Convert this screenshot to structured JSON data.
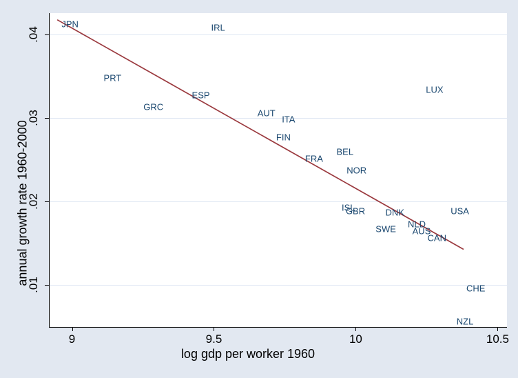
{
  "figure": {
    "background_color": "#e2e8f1",
    "plot_background_color": "#ffffff",
    "grid_color": "#dfe7f3",
    "axis_color": "#000000",
    "marker_label_color": "#1a476f",
    "fit_line_color": "#9b3a3f"
  },
  "chart_data": {
    "type": "scatter",
    "title": "",
    "xlabel": "log gdp per worker 1960",
    "ylabel": "annual growth rate 1960-2000",
    "xlim": [
      8.921,
      10.533
    ],
    "ylim": [
      0.005,
      0.0426
    ],
    "grid": "horizontal-only",
    "legend_position": "none",
    "marker_style": "country-code-text-labels",
    "x_ticks": [
      {
        "value": 9,
        "label": "9"
      },
      {
        "value": 9.5,
        "label": "9.5"
      },
      {
        "value": 10,
        "label": "10"
      },
      {
        "value": 10.5,
        "label": "10.5"
      }
    ],
    "y_ticks": [
      {
        "value": 0.01,
        "label": ".01"
      },
      {
        "value": 0.02,
        "label": ".02"
      },
      {
        "value": 0.03,
        "label": ".03"
      },
      {
        "value": 0.04,
        "label": ".04"
      }
    ],
    "points": [
      {
        "label": "JPN",
        "x": 8.993,
        "y": 0.0413
      },
      {
        "label": "IRL",
        "x": 9.515,
        "y": 0.0409
      },
      {
        "label": "PRT",
        "x": 9.143,
        "y": 0.0348
      },
      {
        "label": "ESP",
        "x": 9.454,
        "y": 0.0328
      },
      {
        "label": "GRC",
        "x": 9.287,
        "y": 0.0314
      },
      {
        "label": "LUX",
        "x": 10.278,
        "y": 0.0334
      },
      {
        "label": "AUT",
        "x": 9.685,
        "y": 0.0306
      },
      {
        "label": "ITA",
        "x": 9.763,
        "y": 0.0299
      },
      {
        "label": "FIN",
        "x": 9.745,
        "y": 0.0277
      },
      {
        "label": "BEL",
        "x": 9.962,
        "y": 0.026
      },
      {
        "label": "FRA",
        "x": 9.853,
        "y": 0.0252
      },
      {
        "label": "NOR",
        "x": 10.003,
        "y": 0.0238
      },
      {
        "label": "ISL",
        "x": 9.974,
        "y": 0.0193
      },
      {
        "label": "GBR",
        "x": 9.999,
        "y": 0.0189
      },
      {
        "label": "DNK",
        "x": 10.138,
        "y": 0.0187
      },
      {
        "label": "USA",
        "x": 10.367,
        "y": 0.0189
      },
      {
        "label": "NLD",
        "x": 10.215,
        "y": 0.0173
      },
      {
        "label": "SWE",
        "x": 10.106,
        "y": 0.0167
      },
      {
        "label": "AUS",
        "x": 10.232,
        "y": 0.0165
      },
      {
        "label": "CAN",
        "x": 10.286,
        "y": 0.0157
      },
      {
        "label": "CHE",
        "x": 10.423,
        "y": 0.0096
      },
      {
        "label": "NZL",
        "x": 10.385,
        "y": 0.0057
      }
    ],
    "fit_line": {
      "x1": 8.948,
      "y1": 0.0418,
      "x2": 10.38,
      "y2": 0.0143
    }
  }
}
